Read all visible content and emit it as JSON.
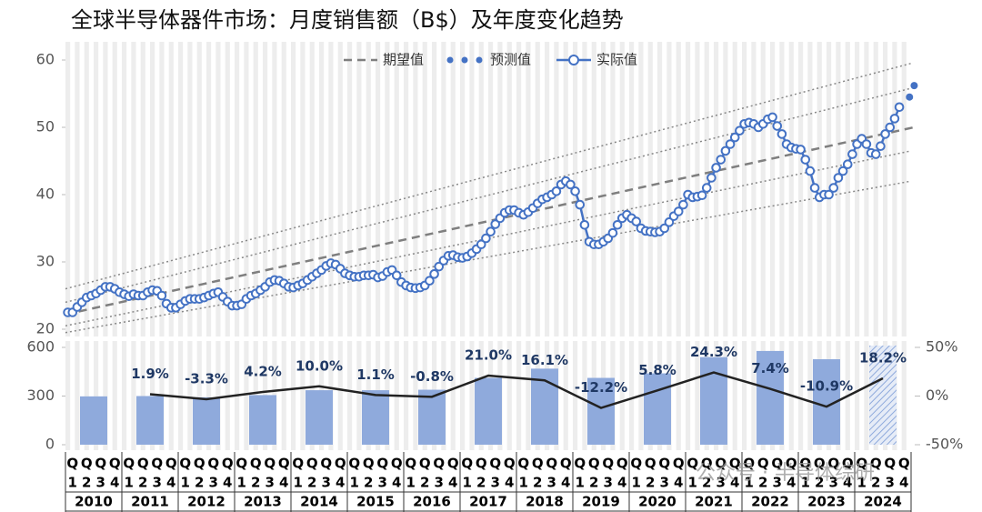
{
  "chart_data": [
    {
      "type": "line",
      "title": "全球半导体器件市场：月度销售额（B$）及年度变化趋势",
      "ylim": [
        20,
        60
      ],
      "yticks": [
        20,
        30,
        40,
        50,
        60
      ],
      "series": [
        {
          "name": "实际值",
          "color": "#4472c4",
          "values": [
            22.5,
            22.5,
            23.3,
            24,
            24.7,
            25,
            25.3,
            25.8,
            26.3,
            26.3,
            26,
            25.5,
            25.2,
            24.9,
            25.2,
            25,
            25,
            25.5,
            25.8,
            25.7,
            25,
            23.8,
            23.2,
            23.2,
            23.7,
            24.2,
            24.5,
            24.5,
            24.5,
            24.7,
            25,
            25.3,
            25.5,
            24.8,
            24.1,
            23.5,
            23.5,
            23.7,
            24.5,
            25,
            25.3,
            25.8,
            26.3,
            27,
            27.3,
            27.2,
            26.8,
            26.3,
            26.2,
            26.5,
            26.8,
            27.3,
            27.8,
            28.3,
            28.8,
            29.4,
            29.8,
            29.6,
            29,
            28.3,
            28,
            27.8,
            27.8,
            28,
            28,
            28.1,
            27.7,
            27.9,
            28.5,
            28.8,
            28,
            27,
            26.5,
            26.2,
            26.1,
            26.2,
            26.5,
            27.2,
            28.2,
            29.3,
            30.2,
            30.9,
            31,
            30.7,
            30.6,
            30.8,
            31.3,
            31.9,
            32.6,
            33.5,
            34.5,
            35.6,
            36.5,
            37.3,
            37.7,
            37.7,
            37.3,
            37,
            37.4,
            38,
            38.7,
            39.3,
            39.6,
            40,
            40.5,
            41.5,
            42,
            41.5,
            40.5,
            38.5,
            35.5,
            33,
            32.6,
            32.6,
            33,
            33.5,
            34.3,
            35.5,
            36.5,
            37,
            36.5,
            36,
            35,
            34.6,
            34.5,
            34.4,
            34.5,
            35,
            35.9,
            36.8,
            37.5,
            38.5,
            40,
            39.6,
            39.7,
            39.9,
            41,
            42.5,
            44,
            45.2,
            46.5,
            47.5,
            48.5,
            49.5,
            50.5,
            50.7,
            50.5,
            50,
            50.5,
            51.2,
            51.5,
            50.2,
            49,
            47.5,
            47,
            46.8,
            46.7,
            45.2,
            43.5,
            41,
            39.6,
            40,
            40,
            41,
            42.5,
            43.5,
            44.5,
            46,
            47.5,
            48.3,
            47.5,
            46.2,
            46,
            47.2,
            49,
            50,
            51.3,
            53,
            null,
            null
          ]
        },
        {
          "name": "预测值",
          "color": "#4472c4",
          "values": [
            null,
            null,
            null,
            null,
            null,
            null,
            null,
            null,
            null,
            null,
            null,
            null,
            null,
            null,
            null,
            null,
            null,
            null,
            null,
            null,
            null,
            null,
            null,
            null,
            null,
            null,
            null,
            null,
            null,
            null,
            null,
            null,
            null,
            null,
            null,
            null,
            null,
            null,
            null,
            null,
            null,
            null,
            null,
            null,
            null,
            null,
            null,
            null,
            null,
            null,
            null,
            null,
            null,
            null,
            null,
            null,
            null,
            null,
            null,
            null,
            null,
            null,
            null,
            null,
            null,
            null,
            null,
            null,
            null,
            null,
            null,
            null,
            null,
            null,
            null,
            null,
            null,
            null,
            null,
            null,
            null,
            null,
            null,
            null,
            null,
            null,
            null,
            null,
            null,
            null,
            null,
            null,
            null,
            null,
            null,
            null,
            null,
            null,
            null,
            null,
            null,
            null,
            null,
            null,
            null,
            null,
            null,
            null,
            null,
            null,
            null,
            null,
            null,
            null,
            null,
            null,
            null,
            null,
            null,
            null,
            null,
            null,
            null,
            null,
            null,
            null,
            null,
            null,
            null,
            null,
            null,
            null,
            null,
            null,
            null,
            null,
            null,
            null,
            null,
            null,
            null,
            null,
            null,
            null,
            null,
            null,
            null,
            null,
            null,
            null,
            null,
            null,
            null,
            null,
            null,
            null,
            null,
            null,
            null,
            null,
            null,
            null,
            null,
            null,
            null,
            null,
            null,
            null,
            null,
            null,
            null,
            null,
            null,
            null,
            null,
            null,
            null,
            null,
            54.5,
            56.2
          ]
        },
        {
          "name": "期望值",
          "color": "#7f7f7f",
          "values": [
            22.2,
            50
          ]
        }
      ],
      "bands": [
        [
          26,
          59.5
        ],
        [
          24,
          55.8
        ],
        [
          20.5,
          46.5
        ],
        [
          19.5,
          42
        ]
      ],
      "watermark": "公众号 · 半导体综研"
    },
    {
      "type": "bar",
      "categories": [
        "2010",
        "2011",
        "2012",
        "2013",
        "2014",
        "2015",
        "2016",
        "2017",
        "2018",
        "2019",
        "2020",
        "2021",
        "2022",
        "2023",
        "2024"
      ],
      "quarter_prefix": "Q",
      "quarter_labels": [
        "1",
        "2",
        "3",
        "4"
      ],
      "ylim": [
        0,
        600
      ],
      "yticks": [
        0,
        300,
        600
      ],
      "y2lim": [
        -50,
        50
      ],
      "y2ticks": [
        {
          "value": -50,
          "label": "-50%"
        },
        {
          "value": 0,
          "label": "0%"
        },
        {
          "value": 50,
          "label": "50%"
        }
      ],
      "series": [
        {
          "color": "#8faadc",
          "values": [
            298,
            300,
            292,
            306,
            336,
            336,
            339,
            412,
            469,
            412,
            440,
            540,
            578,
            527,
            611
          ]
        },
        {
          "color": "#222222",
          "axis": "y2",
          "values": [
            null,
            1.9,
            -3.3,
            4.2,
            10.0,
            1.1,
            -0.8,
            21.0,
            16.1,
            -12.2,
            5.8,
            24.3,
            7.4,
            -10.9,
            18.2
          ],
          "value_labels": [
            null,
            "1.9%",
            "-3.3%",
            "4.2%",
            "10.0%",
            "1.1%",
            "-0.8%",
            "21.0%",
            "16.1%",
            "-12.2%",
            "5.8%",
            "24.3%",
            "7.4%",
            "-10.9%",
            "18.2%"
          ]
        }
      ]
    }
  ]
}
